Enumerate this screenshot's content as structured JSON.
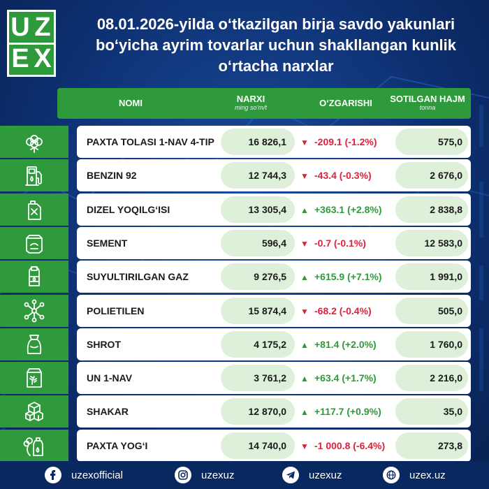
{
  "logo": {
    "l1": "U",
    "l2": "Z",
    "l3": "E",
    "l4": "X"
  },
  "title": "08.01.2026-yilda oʻtkazilgan birja savdo yakunlari boʻyicha ayrim tovarlar uchun shakllangan kunlik oʻrtacha narxlar",
  "header": {
    "name": "NOMI",
    "price": "NARXI",
    "price_unit": "ming soʻm/t",
    "change": "OʻZGARISHI",
    "volume": "SOTILGAN HAJM",
    "volume_unit": "tonna"
  },
  "rows": [
    {
      "icon": "cotton-icon",
      "name": "PAXTA TOLASI 1-NAV 4-TIP",
      "price": "16 826,1",
      "dir": "down",
      "change": "-209.1 (-1.2%)",
      "volume": "575,0"
    },
    {
      "icon": "fuel-pump-icon",
      "name": "BENZIN 92",
      "price": "12 744,3",
      "dir": "down",
      "change": "-43.4 (-0.3%)",
      "volume": "2 676,0"
    },
    {
      "icon": "fuel-canister-icon",
      "name": "DIZEL YOQILGʻISI",
      "price": "13 305,4",
      "dir": "up",
      "change": "+363.1 (+2.8%)",
      "volume": "2 838,8"
    },
    {
      "icon": "cement-bag-icon",
      "name": "SEMENT",
      "price": "596,4",
      "dir": "down",
      "change": "-0.7 (-0.1%)",
      "volume": "12 583,0"
    },
    {
      "icon": "gas-cylinder-icon",
      "name": "SUYULTIRILGAN GAZ",
      "price": "9 276,5",
      "dir": "up",
      "change": "+615.9 (+7.1%)",
      "volume": "1 991,0"
    },
    {
      "icon": "molecule-icon",
      "name": "POLIETILEN",
      "price": "15 874,4",
      "dir": "down",
      "change": "-68.2 (-0.4%)",
      "volume": "505,0"
    },
    {
      "icon": "feed-sack-icon",
      "name": "SHROT",
      "price": "4 175,2",
      "dir": "up",
      "change": "+81.4 (+2.0%)",
      "volume": "1 760,0"
    },
    {
      "icon": "flour-bag-icon",
      "name": "UN 1-NAV",
      "price": "3 761,2",
      "dir": "up",
      "change": "+63.4 (+1.7%)",
      "volume": "2 216,0"
    },
    {
      "icon": "sugar-cubes-icon",
      "name": "SHAKAR",
      "price": "12 870,0",
      "dir": "up",
      "change": "+117.7 (+0.9%)",
      "volume": "35,0"
    },
    {
      "icon": "cotton-oil-icon",
      "name": "PAXTA YOGʻI",
      "price": "14 740,0",
      "dir": "down",
      "change": "-1 000.8 (-6.4%)",
      "volume": "273,8"
    }
  ],
  "footer": {
    "facebook": "uzexofficial",
    "instagram": "uzexuz",
    "telegram": "uzexuz",
    "website": "uzex.uz"
  },
  "colors": {
    "accent_green": "#2f9a3c",
    "down_red": "#e0213a",
    "bg_blue": "#0d2f70"
  }
}
